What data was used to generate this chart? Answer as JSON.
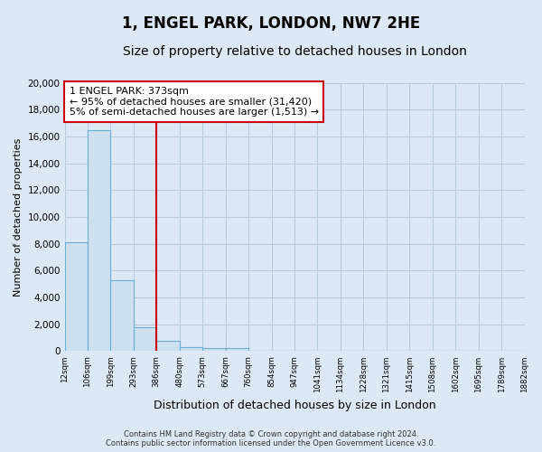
{
  "title": "1, ENGEL PARK, LONDON, NW7 2HE",
  "subtitle": "Size of property relative to detached houses in London",
  "xlabel": "Distribution of detached houses by size in London",
  "ylabel": "Number of detached properties",
  "bar_values": [
    8100,
    16500,
    5300,
    1800,
    750,
    300,
    250,
    200,
    0,
    0,
    0,
    0,
    0,
    0,
    0,
    0,
    0,
    0,
    0,
    0
  ],
  "x_labels": [
    "12sqm",
    "106sqm",
    "199sqm",
    "293sqm",
    "386sqm",
    "480sqm",
    "573sqm",
    "667sqm",
    "760sqm",
    "854sqm",
    "947sqm",
    "1041sqm",
    "1134sqm",
    "1228sqm",
    "1321sqm",
    "1415sqm",
    "1508sqm",
    "1602sqm",
    "1695sqm",
    "1789sqm",
    "1882sqm"
  ],
  "bar_color": "#cce0f0",
  "bar_edge_color": "#6aaed6",
  "vline_color": "#cc0000",
  "annotation_title": "1 ENGEL PARK: 373sqm",
  "annotation_line1": "← 95% of detached houses are smaller (31,420)",
  "annotation_line2": "5% of semi-detached houses are larger (1,513) →",
  "annotation_box_color": "#ffffff",
  "annotation_box_edgecolor": "#cc0000",
  "ylim": [
    0,
    20000
  ],
  "yticks": [
    0,
    2000,
    4000,
    6000,
    8000,
    10000,
    12000,
    14000,
    16000,
    18000,
    20000
  ],
  "footer_line1": "Contains HM Land Registry data © Crown copyright and database right 2024.",
  "footer_line2": "Contains public sector information licensed under the Open Government Licence v3.0.",
  "background_color": "#dce8f5",
  "plot_bg_color": "#dce8f5",
  "grid_color": "#b8cedf",
  "title_fontsize": 12,
  "subtitle_fontsize": 10,
  "ylabel_fontsize": 8,
  "xlabel_fontsize": 9
}
